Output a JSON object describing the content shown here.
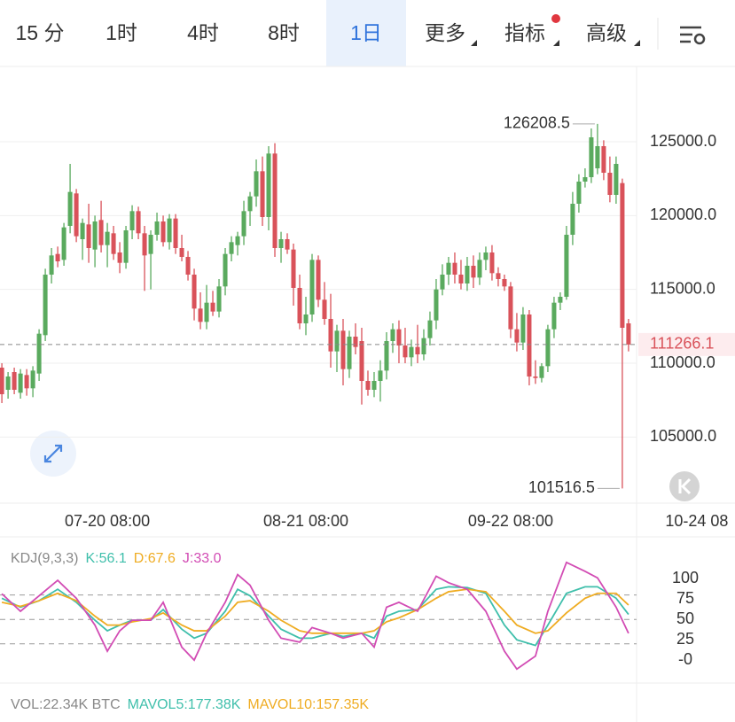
{
  "toolbar": {
    "tabs": [
      "15 分",
      "1时",
      "4时",
      "8时",
      "1日",
      "更多",
      "指标",
      "高级"
    ],
    "selected": 4
  },
  "chart_data": [
    {
      "type": "candlestick",
      "up_color": "#5aaa5e",
      "down_color": "#d9525a",
      "grid": true,
      "open": [
        109700,
        108200,
        109400,
        108000,
        109200,
        108300,
        109300,
        111900,
        116000,
        117400,
        117000,
        119300,
        121500,
        118400,
        119400,
        117700,
        119700,
        118000,
        118800,
        117500,
        116800,
        119000,
        120300,
        118800,
        117400,
        118700,
        119600,
        118200,
        119800,
        117800,
        117200,
        116000,
        113700,
        112800,
        114100,
        113500,
        115200,
        117400,
        118000,
        118600,
        120300,
        121300,
        123000,
        119900,
        124200,
        117800,
        118400,
        117700,
        115100,
        112700,
        113300,
        117000,
        114300,
        113000,
        110800,
        112200,
        109600,
        111800,
        111500,
        108800,
        108200,
        108800,
        109500,
        111500,
        112300,
        111200,
        110400,
        111100,
        110600,
        111700,
        112900,
        115000,
        116000,
        116800,
        116000,
        115400,
        116600,
        115800,
        117000,
        117500,
        116100,
        115700,
        115200,
        112300,
        111400,
        113300,
        109100,
        109000,
        109800,
        112300,
        114100,
        114500,
        118700,
        120800,
        122300,
        122600,
        123200,
        124700,
        122900,
        121400,
        122200,
        112700
      ],
      "high": [
        110000,
        109400,
        109700,
        109600,
        109600,
        109800,
        112300,
        116400,
        117800,
        117900,
        119500,
        123500,
        121800,
        119800,
        120800,
        120000,
        121000,
        119500,
        119300,
        118200,
        119300,
        120700,
        120600,
        119300,
        119000,
        120200,
        120000,
        120100,
        120100,
        118700,
        117600,
        116400,
        114800,
        115300,
        114900,
        115700,
        117800,
        118600,
        118900,
        121000,
        121600,
        123800,
        124000,
        124700,
        124900,
        118900,
        118800,
        118100,
        116000,
        114500,
        117400,
        117300,
        115500,
        114700,
        112600,
        113000,
        112200,
        112700,
        112400,
        109500,
        109400,
        110200,
        112100,
        112700,
        112900,
        112400,
        111600,
        112600,
        112300,
        113500,
        115700,
        116700,
        117200,
        117500,
        117000,
        117200,
        117300,
        117500,
        117900,
        118000,
        116500,
        116000,
        115500,
        113400,
        113800,
        113600,
        110200,
        110000,
        112600,
        114500,
        114800,
        119300,
        121600,
        122800,
        123200,
        125900,
        126208.5,
        125100,
        124000,
        124000,
        122500,
        113000
      ],
      "low": [
        107300,
        107600,
        107900,
        107600,
        107800,
        107700,
        108800,
        111500,
        115400,
        116500,
        116600,
        118800,
        118200,
        117000,
        116800,
        116500,
        117500,
        116500,
        117000,
        116100,
        116400,
        118400,
        118400,
        114900,
        115000,
        118300,
        117900,
        117700,
        117400,
        116900,
        115600,
        112900,
        112300,
        112300,
        113200,
        113100,
        114600,
        116900,
        117300,
        118000,
        119300,
        120600,
        119300,
        119000,
        117200,
        116800,
        117400,
        113900,
        112300,
        111900,
        112800,
        113800,
        112600,
        109700,
        109400,
        108500,
        109000,
        110600,
        107200,
        107800,
        107700,
        107400,
        108900,
        110700,
        110000,
        110000,
        109800,
        110000,
        110200,
        111200,
        112300,
        114600,
        115300,
        115400,
        115000,
        114900,
        115100,
        115300,
        116300,
        115600,
        115200,
        114900,
        111700,
        110800,
        110900,
        108500,
        108600,
        108700,
        109400,
        111700,
        113600,
        114300,
        118000,
        120200,
        121900,
        122200,
        122800,
        122400,
        120900,
        120800,
        101516.5,
        110800
      ],
      "close": [
        107900,
        109100,
        108200,
        109300,
        108300,
        109500,
        112000,
        116000,
        117300,
        116900,
        119200,
        121600,
        118600,
        119500,
        117800,
        119600,
        118000,
        118900,
        117400,
        116800,
        119000,
        120300,
        118800,
        117300,
        118700,
        119600,
        118200,
        119800,
        117800,
        117200,
        116000,
        113700,
        112800,
        114100,
        113500,
        115200,
        117400,
        118200,
        118600,
        120300,
        121300,
        123000,
        119900,
        124200,
        117800,
        118400,
        117700,
        115100,
        112700,
        113300,
        117000,
        114300,
        113000,
        110800,
        112200,
        109600,
        111800,
        111100,
        108800,
        108200,
        108800,
        109500,
        111500,
        112300,
        111200,
        110400,
        111100,
        110600,
        111700,
        112900,
        115000,
        116000,
        116800,
        116000,
        115400,
        116600,
        115800,
        117000,
        117500,
        116100,
        115700,
        115200,
        112300,
        111400,
        113300,
        109100,
        109000,
        109800,
        112300,
        114100,
        114500,
        118700,
        120800,
        122300,
        122600,
        125300,
        124700,
        122900,
        121400,
        123500,
        112400,
        111266.1
      ],
      "xlim": [
        -0.3,
        102.3
      ],
      "xticks": [
        {
          "value": 17,
          "label": "07-20 08:00"
        },
        {
          "value": 49,
          "label": "08-21 08:00"
        },
        {
          "value": 82,
          "label": "09-22 08:00"
        },
        {
          "value": 112,
          "label": "10-24 08"
        }
      ],
      "ylim": [
        100520,
        130100
      ],
      "yticks": [
        {
          "value": 105000,
          "label": "105000.0"
        },
        {
          "value": 110000,
          "label": "110000.0"
        },
        {
          "value": 115000,
          "label": "115000.0"
        },
        {
          "value": 120000,
          "label": "120000.0"
        },
        {
          "value": 125000,
          "label": "125000.0"
        }
      ]
    },
    {
      "type": "line",
      "title": "KDJ(9,3,3)",
      "x": [
        0,
        3,
        6,
        9,
        12,
        15,
        17,
        19,
        21,
        24,
        26,
        29,
        31,
        33,
        36,
        38,
        40,
        43,
        45,
        48,
        50,
        53,
        55,
        58,
        60,
        62,
        64,
        67,
        70,
        72,
        75,
        78,
        81,
        83,
        86,
        88,
        91,
        94,
        96,
        99,
        101
      ],
      "series": [
        {
          "name": "K:56.1",
          "color": "#3fbfab",
          "values": [
            76,
            65,
            73,
            87,
            71,
            49,
            36,
            43,
            49,
            49,
            62,
            38,
            27,
            33,
            60,
            87,
            79,
            54,
            38,
            27,
            27,
            33,
            29,
            33,
            27,
            54,
            60,
            62,
            87,
            90,
            89,
            82,
            43,
            25,
            18,
            43,
            82,
            90,
            90,
            76,
            56.1
          ]
        },
        {
          "name": "D:67.6",
          "color": "#efac22",
          "values": [
            71,
            66,
            73,
            82,
            73,
            54,
            43,
            43,
            47,
            51,
            58,
            43,
            36,
            36,
            54,
            71,
            73,
            60,
            49,
            36,
            33,
            33,
            33,
            33,
            36,
            47,
            52,
            62,
            76,
            84,
            87,
            84,
            60,
            43,
            33,
            36,
            58,
            76,
            82,
            82,
            67.6
          ]
        },
        {
          "name": "J:33.0",
          "color": "#d24cb4",
          "values": [
            81.5,
            60,
            79,
            98,
            76,
            43,
            11,
            36,
            49,
            49,
            71,
            16,
            0,
            33,
            71,
            105,
            92,
            49,
            27,
            22,
            40,
            33,
            27,
            33,
            16,
            65,
            71,
            60,
            103,
            95,
            87,
            60,
            11,
            -11,
            5,
            60,
            120,
            109,
            101,
            65,
            33.0
          ]
        }
      ],
      "xlim": [
        -0.3,
        102.3
      ],
      "ylim": [
        -27,
        147
      ],
      "yticks": [
        {
          "value": 0,
          "label": "-0"
        },
        25,
        50,
        75,
        100
      ],
      "ref_lines": [
        20,
        50,
        80
      ]
    }
  ],
  "volume_legend": {
    "vol": "VOL:22.34K BTC",
    "mavol5": "MAVOL5:177.38K",
    "mavol10": "MAVOL10:157.35K"
  }
}
